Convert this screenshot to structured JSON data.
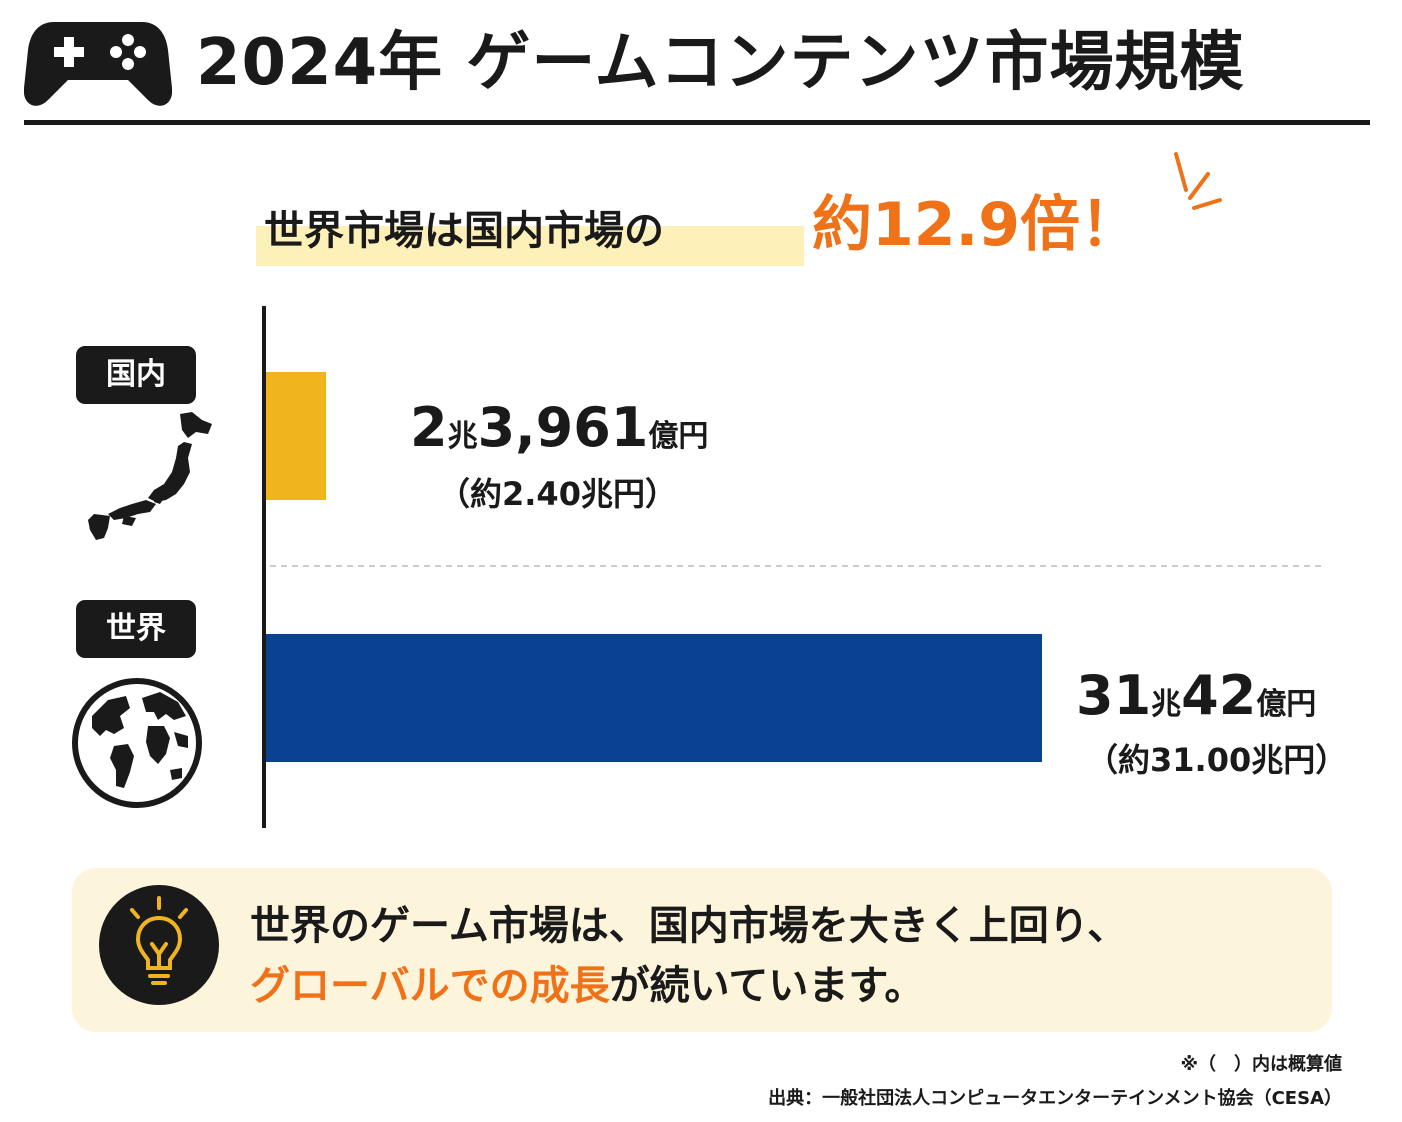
{
  "header": {
    "title": "2024年 ゲームコンテンツ市場規模",
    "icon": "game-controller-icon"
  },
  "headline": {
    "text": "世界市場は国内市場の",
    "emphasis": "約12.9倍！"
  },
  "colors": {
    "domestic_bar": "#f0b51e",
    "world_bar": "#0a4191",
    "accent": "#f07218",
    "dark": "#1a1a1a",
    "callout_bg": "#fdf4dc",
    "headline_marker": "#fdf0b8"
  },
  "chart_data": {
    "type": "bar",
    "orientation": "horizontal",
    "unit": "兆円",
    "categories": [
      "国内",
      "世界"
    ],
    "values": [
      2.4,
      31.0
    ],
    "value_labels": [
      {
        "main_number1": "2",
        "unit1": "兆",
        "main_number2": "3,961",
        "unit2": "億円",
        "approx": "（約2.40兆円）"
      },
      {
        "main_number1": "31",
        "unit1": "兆",
        "main_number2": "42",
        "unit2": "億円",
        "approx": "（約31.00兆円）"
      }
    ],
    "category_icons": [
      "japan-map-icon",
      "globe-icon"
    ],
    "xlim": [
      0,
      31
    ]
  },
  "callout": {
    "icon": "lightbulb-icon",
    "line1": "世界のゲーム市場は、国内市場を大きく上回り、",
    "line2_emphasis": "グローバルでの成長",
    "line2_rest": "が続いています。"
  },
  "footer": {
    "note": "※（　）内は概算値",
    "source": "出典：一般社団法人コンピュータエンターテインメント協会（CESA）"
  }
}
